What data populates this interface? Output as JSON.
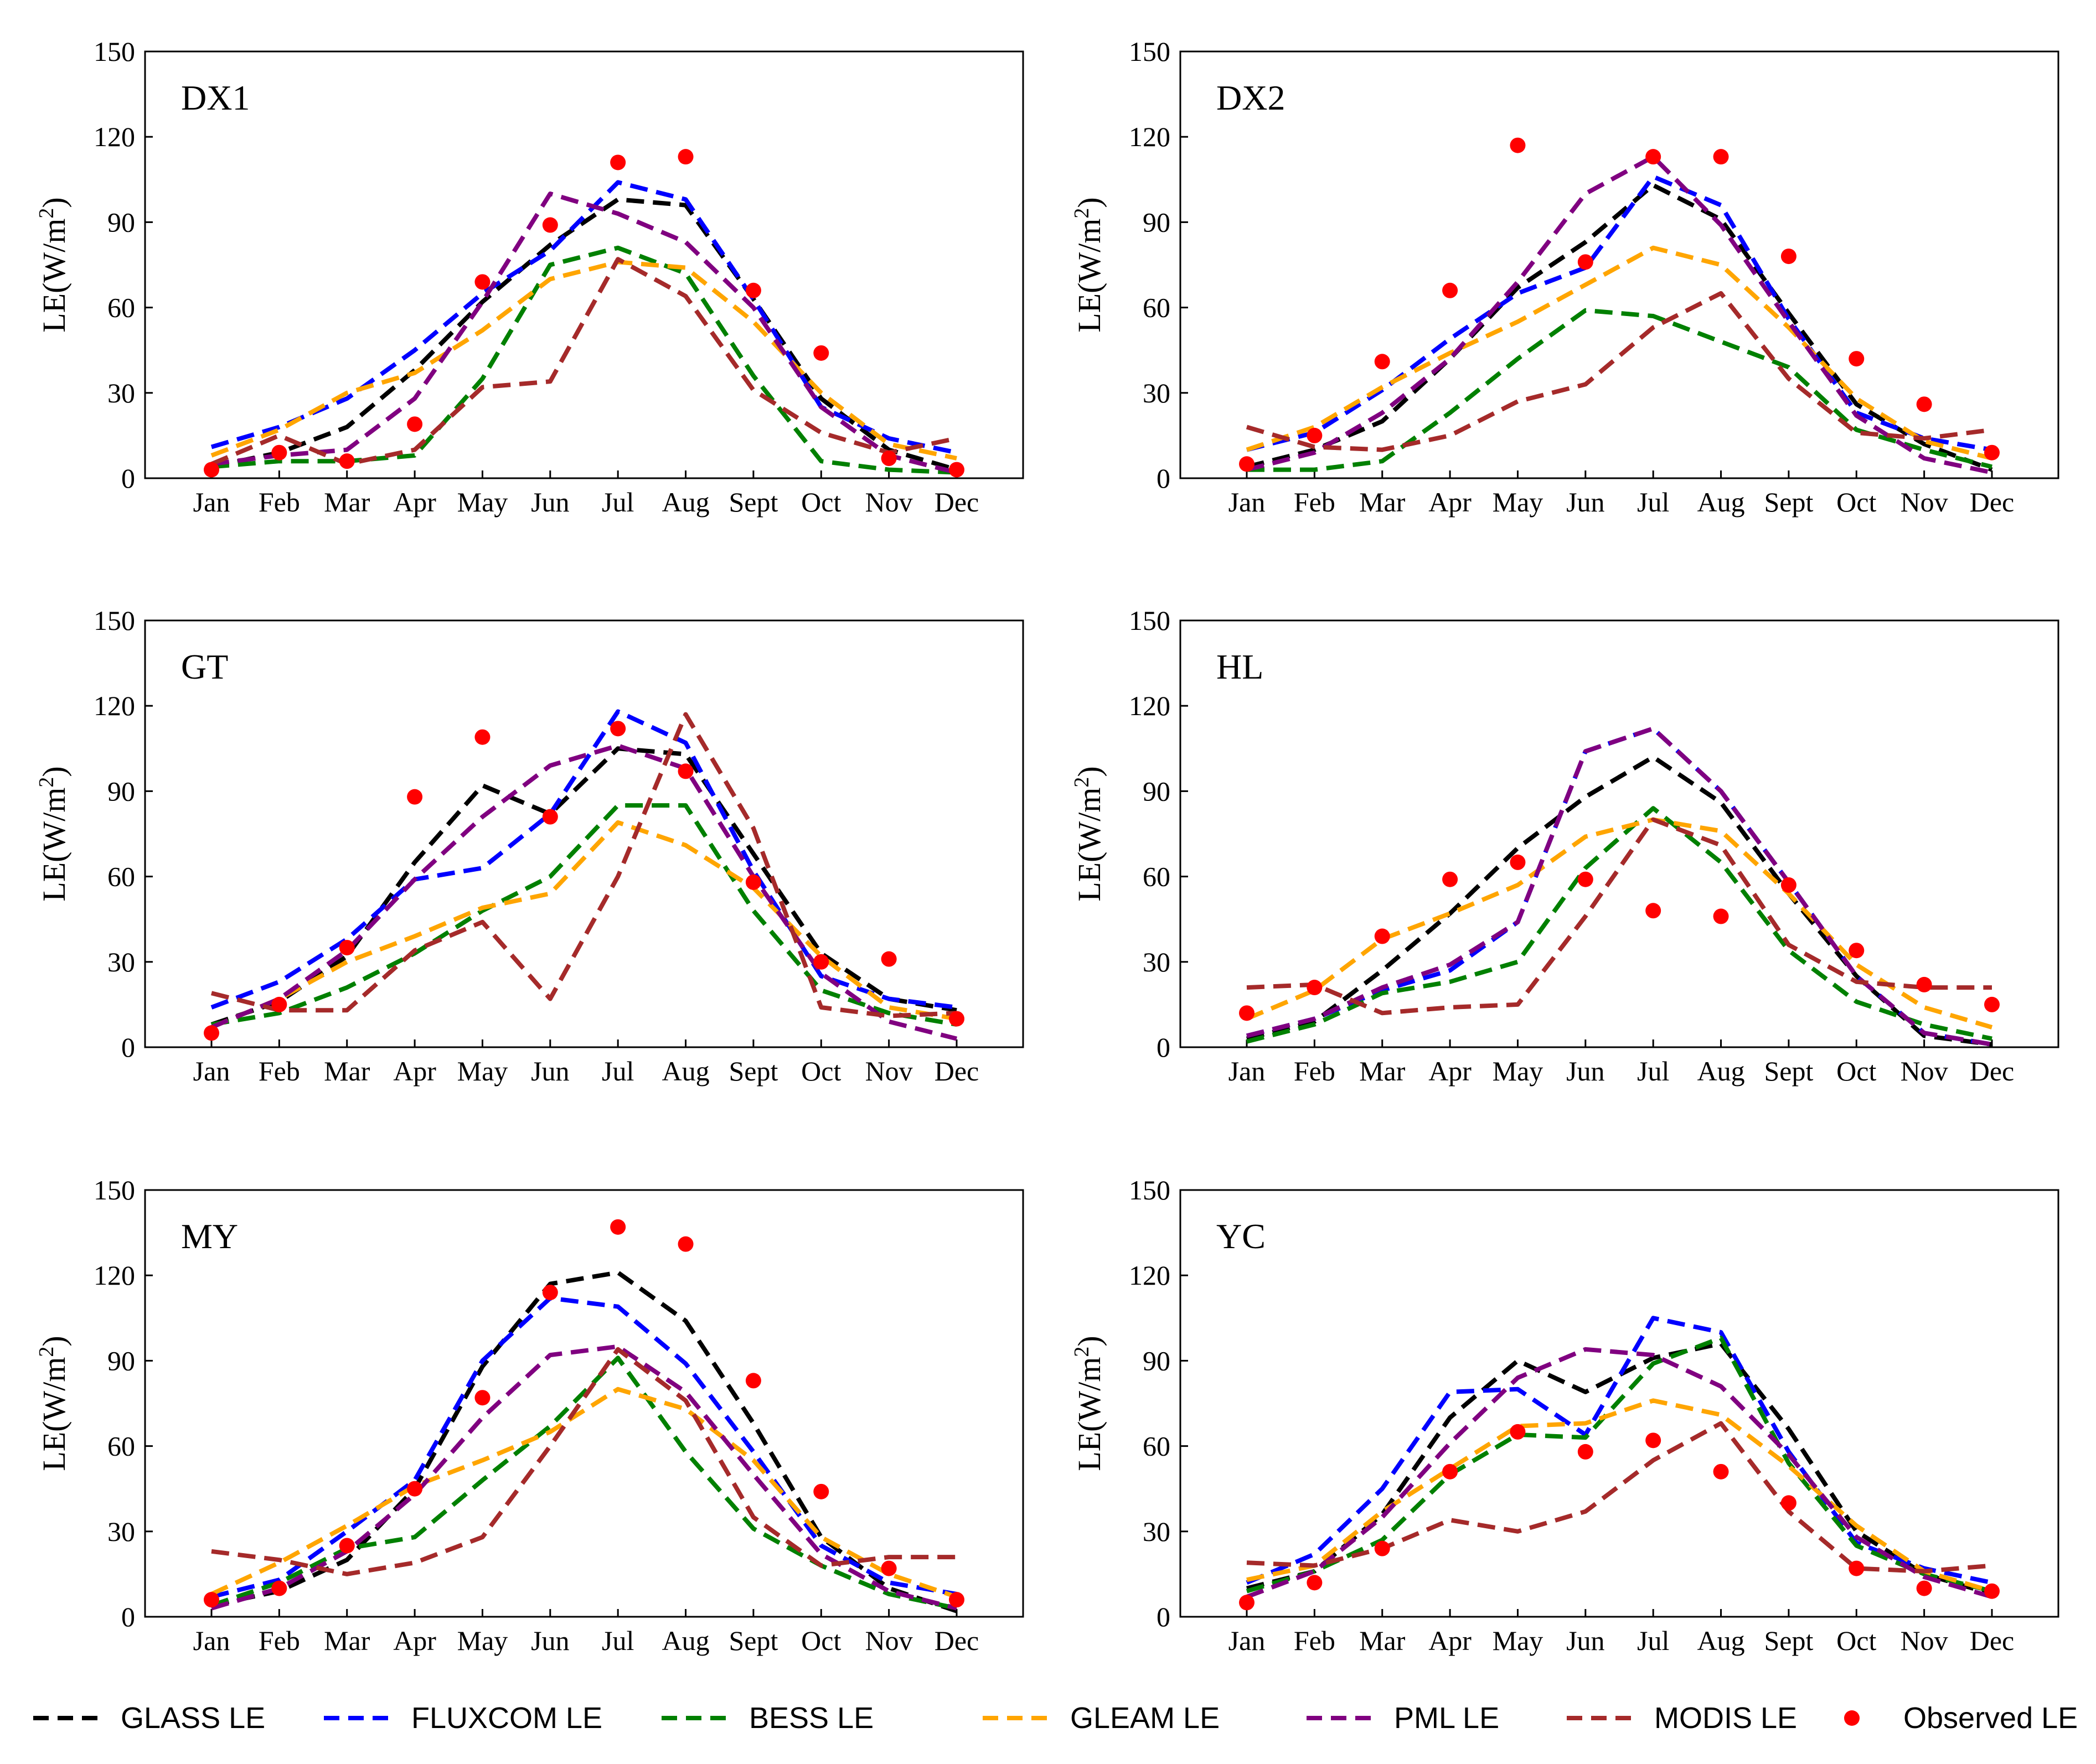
{
  "chart_data": [
    {
      "type": "line",
      "panel": "DX1",
      "categories": [
        "Jan",
        "Feb",
        "Mar",
        "Apr",
        "May",
        "Jun",
        "Jul",
        "Aug",
        "Sept",
        "Oct",
        "Nov",
        "Dec"
      ],
      "ylabel": "LE(W/m",
      "ylabel_sup": "2",
      "ylabel_end": ")",
      "ylim": [
        0,
        150
      ],
      "yticks": [
        "0",
        "30",
        "60",
        "90",
        "120",
        "150"
      ],
      "series": [
        {
          "name": "GLASS LE",
          "values": [
            4,
            9,
            18,
            38,
            62,
            82,
            98,
            96,
            63,
            28,
            10,
            3
          ]
        },
        {
          "name": "FLUXCOM LE",
          "values": [
            11,
            18,
            28,
            45,
            65,
            80,
            104,
            98,
            63,
            25,
            14,
            9
          ]
        },
        {
          "name": "BESS LE",
          "values": [
            4,
            6,
            6,
            8,
            35,
            75,
            81,
            72,
            36,
            6,
            3,
            2
          ]
        },
        {
          "name": "GLEAM LE",
          "values": [
            8,
            17,
            30,
            37,
            52,
            70,
            76,
            74,
            55,
            30,
            12,
            7
          ]
        },
        {
          "name": "PML LE",
          "values": [
            5,
            8,
            10,
            28,
            62,
            100,
            93,
            83,
            60,
            25,
            8,
            2
          ]
        },
        {
          "name": "MODIS LE",
          "values": [
            5,
            15,
            5,
            10,
            32,
            34,
            77,
            64,
            31,
            16,
            9,
            14
          ]
        },
        {
          "name": "Observed LE",
          "values": [
            3,
            9,
            6,
            19,
            69,
            89,
            111,
            113,
            66,
            44,
            7,
            3
          ]
        }
      ]
    },
    {
      "type": "line",
      "panel": "DX2",
      "categories": [
        "Jan",
        "Feb",
        "Mar",
        "Apr",
        "May",
        "Jun",
        "Jul",
        "Aug",
        "Sept",
        "Oct",
        "Nov",
        "Dec"
      ],
      "ylabel": "LE(W/m",
      "ylabel_sup": "2",
      "ylabel_end": ")",
      "ylim": [
        0,
        150
      ],
      "yticks": [
        "0",
        "30",
        "60",
        "90",
        "120",
        "150"
      ],
      "series": [
        {
          "name": "GLASS LE",
          "values": [
            4,
            10,
            20,
            42,
            67,
            83,
            103,
            91,
            58,
            26,
            12,
            3
          ]
        },
        {
          "name": "FLUXCOM LE",
          "values": [
            10,
            16,
            31,
            49,
            65,
            74,
            106,
            96,
            56,
            23,
            14,
            10
          ]
        },
        {
          "name": "BESS LE",
          "values": [
            3,
            3,
            6,
            23,
            42,
            59,
            57,
            48,
            39,
            17,
            10,
            4
          ]
        },
        {
          "name": "GLEAM LE",
          "values": [
            10,
            18,
            32,
            44,
            55,
            68,
            81,
            75,
            53,
            28,
            13,
            7
          ]
        },
        {
          "name": "PML LE",
          "values": [
            3,
            9,
            23,
            42,
            69,
            100,
            113,
            89,
            55,
            22,
            7,
            2
          ]
        },
        {
          "name": "MODIS LE",
          "values": [
            18,
            11,
            10,
            15,
            27,
            33,
            53,
            65,
            35,
            16,
            14,
            17
          ]
        },
        {
          "name": "Observed LE",
          "values": [
            5,
            15,
            41,
            66,
            117,
            76,
            113,
            113,
            78,
            42,
            26,
            9
          ]
        }
      ]
    },
    {
      "type": "line",
      "panel": "GT",
      "categories": [
        "Jan",
        "Feb",
        "Mar",
        "Apr",
        "May",
        "Jun",
        "Jul",
        "Aug",
        "Sept",
        "Oct",
        "Nov",
        "Dec"
      ],
      "ylabel": "LE(W/m",
      "ylabel_sup": "2",
      "ylabel_end": ")",
      "ylim": [
        0,
        150
      ],
      "yticks": [
        "0",
        "30",
        "60",
        "90",
        "120",
        "150"
      ],
      "series": [
        {
          "name": "GLASS LE",
          "values": [
            8,
            16,
            32,
            65,
            92,
            82,
            105,
            103,
            68,
            33,
            17,
            13
          ]
        },
        {
          "name": "FLUXCOM LE",
          "values": [
            14,
            23,
            38,
            59,
            63,
            82,
            118,
            107,
            62,
            25,
            17,
            14
          ]
        },
        {
          "name": "BESS LE",
          "values": [
            8,
            12,
            21,
            33,
            48,
            60,
            85,
            85,
            48,
            20,
            12,
            8
          ]
        },
        {
          "name": "GLEAM LE",
          "values": [
            7,
            17,
            30,
            39,
            49,
            54,
            79,
            71,
            56,
            32,
            14,
            10
          ]
        },
        {
          "name": "PML LE",
          "values": [
            7,
            17,
            34,
            59,
            81,
            99,
            106,
            98,
            60,
            26,
            9,
            3
          ]
        },
        {
          "name": "MODIS LE",
          "values": [
            19,
            13,
            13,
            34,
            44,
            17,
            60,
            117,
            77,
            14,
            11,
            12
          ]
        },
        {
          "name": "Observed LE",
          "values": [
            5,
            15,
            35,
            88,
            109,
            81,
            112,
            97,
            58,
            30,
            31,
            10
          ]
        }
      ]
    },
    {
      "type": "line",
      "panel": "HL",
      "categories": [
        "Jan",
        "Feb",
        "Mar",
        "Apr",
        "May",
        "Jun",
        "Jul",
        "Aug",
        "Sept",
        "Oct",
        "Nov",
        "Dec"
      ],
      "ylabel": "LE(W/m",
      "ylabel_sup": "2",
      "ylabel_end": ")",
      "ylim": [
        0,
        150
      ],
      "yticks": [
        "0",
        "30",
        "60",
        "90",
        "120",
        "150"
      ],
      "series": [
        {
          "name": "GLASS LE",
          "values": [
            3,
            9,
            27,
            47,
            70,
            88,
            102,
            86,
            54,
            25,
            4,
            1
          ]
        },
        {
          "name": "FLUXCOM LE",
          "values": [
            4,
            10,
            20,
            27,
            44,
            104,
            112,
            90,
            58,
            25,
            5,
            1
          ]
        },
        {
          "name": "BESS LE",
          "values": [
            2,
            8,
            19,
            23,
            30,
            63,
            84,
            65,
            34,
            16,
            8,
            3
          ]
        },
        {
          "name": "GLEAM LE",
          "values": [
            10,
            20,
            38,
            47,
            57,
            74,
            80,
            76,
            54,
            29,
            14,
            7
          ]
        },
        {
          "name": "PML LE",
          "values": [
            4,
            10,
            21,
            29,
            44,
            104,
            112,
            90,
            58,
            25,
            5,
            1
          ]
        },
        {
          "name": "MODIS LE",
          "values": [
            21,
            22,
            12,
            14,
            15,
            46,
            80,
            71,
            36,
            23,
            21,
            21
          ]
        },
        {
          "name": "Observed LE",
          "values": [
            12,
            21,
            39,
            59,
            65,
            59,
            48,
            46,
            57,
            34,
            22,
            15
          ]
        }
      ]
    },
    {
      "type": "line",
      "panel": "MY",
      "categories": [
        "Jan",
        "Feb",
        "Mar",
        "Apr",
        "May",
        "Jun",
        "Jul",
        "Aug",
        "Sept",
        "Oct",
        "Nov",
        "Dec"
      ],
      "ylabel": "LE(W/m",
      "ylabel_sup": "2",
      "ylabel_end": ")",
      "ylim": [
        0,
        150
      ],
      "yticks": [
        "0",
        "30",
        "60",
        "90",
        "120",
        "150"
      ],
      "series": [
        {
          "name": "GLASS LE",
          "values": [
            4,
            9,
            20,
            45,
            88,
            117,
            121,
            104,
            68,
            28,
            10,
            2
          ]
        },
        {
          "name": "FLUXCOM LE",
          "values": [
            7,
            13,
            30,
            48,
            90,
            112,
            109,
            89,
            58,
            25,
            12,
            8
          ]
        },
        {
          "name": "BESS LE",
          "values": [
            4,
            12,
            24,
            28,
            48,
            67,
            91,
            58,
            31,
            18,
            8,
            3
          ]
        },
        {
          "name": "GLEAM LE",
          "values": [
            8,
            19,
            32,
            46,
            55,
            65,
            80,
            73,
            55,
            28,
            15,
            7
          ]
        },
        {
          "name": "PML LE",
          "values": [
            3,
            10,
            23,
            43,
            70,
            92,
            95,
            79,
            50,
            22,
            9,
            3
          ]
        },
        {
          "name": "MODIS LE",
          "values": [
            23,
            20,
            15,
            19,
            28,
            60,
            94,
            76,
            35,
            18,
            21,
            21
          ]
        },
        {
          "name": "Observed LE",
          "values": [
            6,
            10,
            25,
            45,
            77,
            114,
            137,
            131,
            83,
            44,
            17,
            6
          ]
        }
      ]
    },
    {
      "type": "line",
      "panel": "YC",
      "categories": [
        "Jan",
        "Feb",
        "Mar",
        "Apr",
        "May",
        "Jun",
        "Jul",
        "Aug",
        "Sept",
        "Oct",
        "Nov",
        "Dec"
      ],
      "ylabel": "LE(W/m",
      "ylabel_sup": "2",
      "ylabel_end": ")",
      "ylim": [
        0,
        150
      ],
      "yticks": [
        "0",
        "30",
        "60",
        "90",
        "120",
        "150"
      ],
      "series": [
        {
          "name": "GLASS LE",
          "values": [
            10,
            16,
            36,
            70,
            90,
            79,
            91,
            96,
            66,
            30,
            15,
            8
          ]
        },
        {
          "name": "FLUXCOM LE",
          "values": [
            12,
            22,
            45,
            79,
            80,
            64,
            105,
            100,
            58,
            26,
            17,
            12
          ]
        },
        {
          "name": "BESS LE",
          "values": [
            9,
            16,
            27,
            50,
            64,
            63,
            89,
            98,
            54,
            25,
            15,
            9
          ]
        },
        {
          "name": "GLEAM LE",
          "values": [
            13,
            18,
            37,
            52,
            67,
            68,
            76,
            71,
            53,
            32,
            16,
            9
          ]
        },
        {
          "name": "PML LE",
          "values": [
            7,
            16,
            35,
            61,
            84,
            94,
            92,
            81,
            57,
            28,
            14,
            7
          ]
        },
        {
          "name": "MODIS LE",
          "values": [
            19,
            18,
            24,
            34,
            30,
            37,
            55,
            68,
            37,
            17,
            16,
            18
          ]
        },
        {
          "name": "Observed LE",
          "values": [
            5,
            12,
            24,
            51,
            65,
            58,
            62,
            51,
            40,
            17,
            10,
            9
          ]
        }
      ]
    }
  ],
  "legend": [
    {
      "name": "GLASS LE",
      "color": "#000000",
      "kind": "dashed-line"
    },
    {
      "name": "FLUXCOM LE",
      "color": "#0000ff",
      "kind": "dashed-line"
    },
    {
      "name": "BESS LE",
      "color": "#008000",
      "kind": "dashed-line"
    },
    {
      "name": "GLEAM LE",
      "color": "#ffa500",
      "kind": "dashed-line"
    },
    {
      "name": "PML LE",
      "color": "#800080",
      "kind": "dashed-line"
    },
    {
      "name": "MODIS LE",
      "color": "#a52a2a",
      "kind": "dashed-line"
    },
    {
      "name": "Observed LE",
      "color": "#ff0000",
      "kind": "marker"
    }
  ]
}
